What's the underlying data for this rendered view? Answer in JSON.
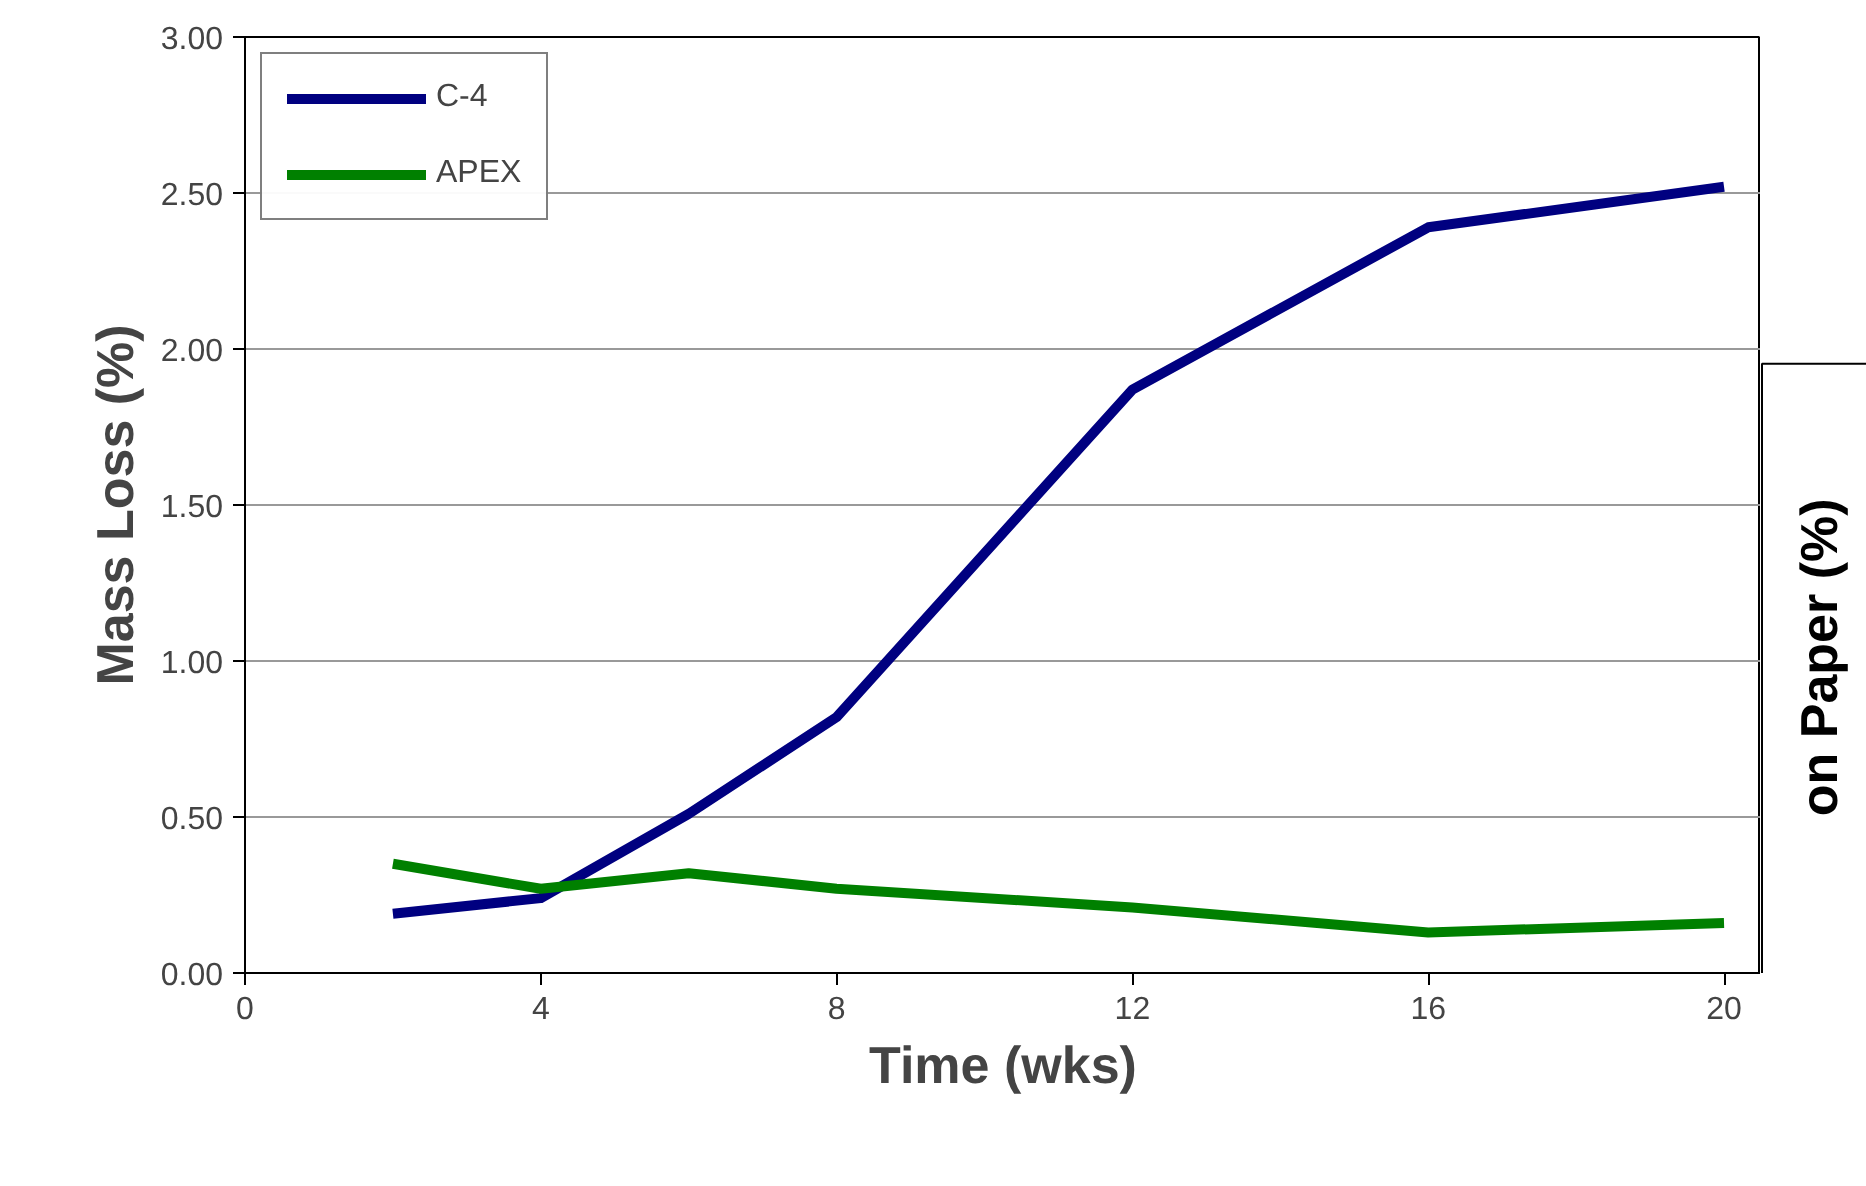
{
  "chart_data": [
    {
      "type": "line",
      "xlabel": "Time (wks)",
      "ylabel": "Mass Loss (%)",
      "xlim": [
        0,
        20.5
      ],
      "xticks": [
        0,
        4,
        8,
        12,
        16,
        20
      ],
      "ylim": [
        0,
        3
      ],
      "yticks": [
        {
          "value": 0,
          "label": "0.00"
        },
        {
          "value": 0.5,
          "label": "0.50"
        },
        {
          "value": 1,
          "label": "1.00"
        },
        {
          "value": 1.5,
          "label": "1.50"
        },
        {
          "value": 2,
          "label": "2.00"
        },
        {
          "value": 2.5,
          "label": "2.50"
        },
        {
          "value": 3,
          "label": "3.00"
        }
      ],
      "grid": "y",
      "legend": "top left",
      "x": [
        2,
        4,
        6,
        8,
        12,
        16,
        20
      ],
      "series": [
        {
          "name": "C-4",
          "color": "#000080",
          "values": [
            0.19,
            0.24,
            0.51,
            0.82,
            1.87,
            2.39,
            2.52
          ]
        },
        {
          "name": "APEX",
          "color": "#008000",
          "values": [
            0.35,
            0.27,
            0.32,
            0.27,
            0.21,
            0.13,
            0.16
          ]
        }
      ]
    },
    {
      "type": "other",
      "ylabel": "on Paper (%)"
    }
  ]
}
